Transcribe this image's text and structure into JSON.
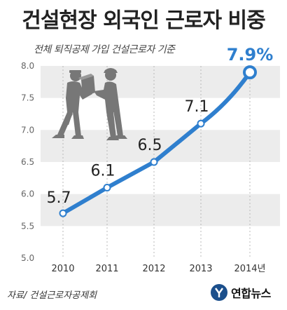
{
  "chart_data": {
    "type": "line",
    "title": "건설현장 외국인 근로자 비중",
    "subtitle": "전체 퇴직공제 가입 건설근로자 기준",
    "categories": [
      "2010",
      "2011",
      "2012",
      "2013",
      "2014년"
    ],
    "series": [
      {
        "values": [
          5.7,
          6.1,
          6.5,
          7.1,
          7.9
        ]
      }
    ],
    "data_labels": [
      "5.7",
      "6.1",
      "6.5",
      "7.1",
      "7.9%"
    ],
    "yticks": [
      "5.0",
      "5.5",
      "6.0",
      "6.5",
      "7.0",
      "7.5",
      "8.0"
    ],
    "ylim": [
      5.0,
      8.0
    ],
    "grid": "alternating-bands",
    "colors": {
      "line": "#2f7fce",
      "last_label": "#2f7fce",
      "band": "#ececec",
      "silhouette": "#777777"
    }
  },
  "source": "자료/ 건설근로자공제회",
  "logo": {
    "text": "연합뉴스",
    "icon": "yonhap-logo-icon"
  }
}
